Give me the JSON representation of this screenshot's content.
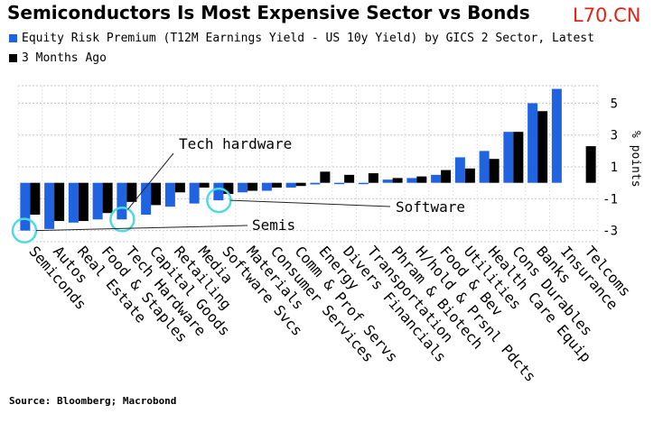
{
  "title": "Semiconductors Is Most Expensive Sector vs Bonds",
  "watermark": "L70.CN",
  "source": "Source: Bloomberg; Macrobond",
  "colors": {
    "series_0": "#1f63e0",
    "series_1": "#000000",
    "grid": "#c8c8c8",
    "highlight": "#4fd9e0",
    "watermark": "#e02418"
  },
  "chart_data": {
    "type": "bar",
    "categories": [
      "Semiconds",
      "Autos",
      "Real Estate",
      "Food & Staples",
      "Tech Hardware",
      "Capital Goods",
      "Retailing",
      "Media",
      "Software Svcs",
      "Materials",
      "Consumer Services",
      "Comm & Prof Servs",
      "Energy",
      "Divers Financials",
      "Transportation",
      "Phram & Biotech",
      "H/hold & Prsnl Pdcts",
      "Food & Bev",
      "Utilities",
      "Health Care Equip",
      "Cons Durables",
      "Banks",
      "Insurance",
      "Telcoms"
    ],
    "series": [
      {
        "name": "Equity Risk Premium (T12M Earnings Yield - US 10y Yield) by GICS 2 Sector, Latest",
        "values": [
          -3.0,
          -2.9,
          -2.5,
          -2.3,
          -2.3,
          -2.0,
          -1.5,
          -1.3,
          -1.1,
          -0.6,
          -0.5,
          -0.3,
          -0.1,
          0.0,
          0.0,
          0.2,
          0.3,
          0.5,
          1.6,
          2.0,
          3.2,
          5.0,
          5.9,
          null
        ]
      },
      {
        "name": "3 Months Ago",
        "values": [
          -2.0,
          -2.4,
          -2.4,
          -1.9,
          -1.2,
          -1.4,
          -0.6,
          -0.3,
          -0.7,
          -0.5,
          -0.3,
          -0.2,
          0.7,
          0.5,
          0.6,
          0.3,
          0.4,
          0.8,
          0.9,
          1.5,
          3.2,
          4.5,
          null,
          2.3
        ]
      }
    ],
    "yaxis": {
      "ticks": [
        5,
        3,
        1,
        -1,
        -3
      ],
      "tick_labels": [
        "5",
        "3",
        "1",
        "-1",
        "-3"
      ],
      "ylim": [
        -3.7,
        6.1
      ],
      "label": "% points",
      "position": "right"
    },
    "grid": true,
    "legend": "top-left",
    "annotations": [
      {
        "text": "Tech hardware",
        "category": "Tech Hardware"
      },
      {
        "text": "Software",
        "category": "Software Svcs"
      },
      {
        "text": "Semis",
        "category": "Semiconds"
      }
    ]
  }
}
